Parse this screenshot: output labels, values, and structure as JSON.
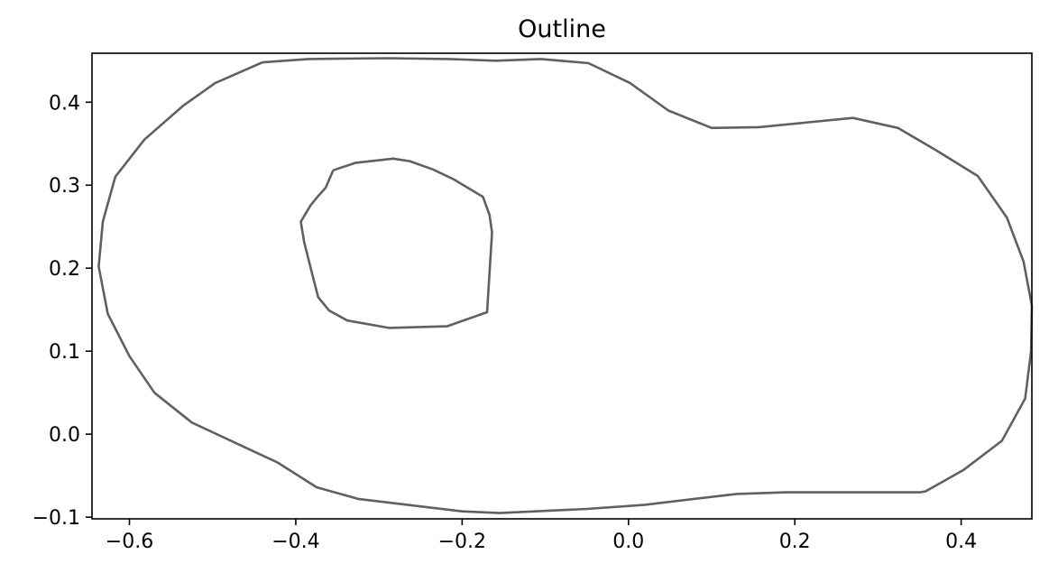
{
  "chart_data": {
    "type": "line",
    "title": "Outline",
    "xlabel": "",
    "ylabel": "",
    "xlim": [
      -0.645,
      0.485
    ],
    "ylim": [
      -0.102,
      0.459
    ],
    "xticks": [
      -0.6,
      -0.4,
      -0.2,
      0.0,
      0.2,
      0.4
    ],
    "xtick_labels": [
      "−0.6",
      "−0.4",
      "−0.2",
      "0.0",
      "0.2",
      "0.4"
    ],
    "yticks": [
      -0.1,
      0.0,
      0.1,
      0.2,
      0.3,
      0.4
    ],
    "ytick_labels": [
      "−0.1",
      "0.0",
      "0.1",
      "0.2",
      "0.3",
      "0.4"
    ],
    "grid": false,
    "line_color": "#606060",
    "series": [
      {
        "x": [
          -0.44,
          -0.385,
          -0.29,
          -0.215,
          -0.16,
          -0.105,
          -0.048,
          0.002,
          0.048,
          0.1,
          0.157,
          0.27,
          0.324,
          0.37,
          0.42,
          0.455,
          0.475,
          0.485,
          0.484,
          0.477,
          0.449,
          0.403,
          0.357,
          0.35,
          0.19,
          0.13,
          0.02,
          -0.05,
          -0.155,
          -0.2,
          -0.325,
          -0.375,
          -0.422,
          -0.525,
          -0.57,
          -0.6,
          -0.626,
          -0.637,
          -0.632,
          -0.617,
          -0.582,
          -0.535,
          -0.497,
          -0.44
        ],
        "y": [
          0.448,
          0.452,
          0.453,
          0.452,
          0.45,
          0.452,
          0.447,
          0.423,
          0.39,
          0.369,
          0.37,
          0.381,
          0.369,
          0.342,
          0.311,
          0.261,
          0.208,
          0.155,
          0.1,
          0.043,
          -0.008,
          -0.043,
          -0.069,
          -0.07,
          -0.07,
          -0.072,
          -0.085,
          -0.09,
          -0.095,
          -0.093,
          -0.078,
          -0.064,
          -0.034,
          0.014,
          0.05,
          0.094,
          0.145,
          0.202,
          0.256,
          0.31,
          0.355,
          0.396,
          0.423,
          0.448
        ]
      },
      {
        "x": [
          -0.355,
          -0.328,
          -0.283,
          -0.263,
          -0.235,
          -0.21,
          -0.175,
          -0.167,
          -0.164,
          -0.17,
          -0.218,
          -0.288,
          -0.338,
          -0.36,
          -0.373,
          -0.379,
          -0.39,
          -0.394,
          -0.382,
          -0.373,
          -0.364,
          -0.355
        ],
        "y": [
          0.318,
          0.327,
          0.332,
          0.329,
          0.319,
          0.307,
          0.286,
          0.264,
          0.243,
          0.147,
          0.13,
          0.128,
          0.137,
          0.149,
          0.165,
          0.188,
          0.232,
          0.256,
          0.276,
          0.287,
          0.297,
          0.318
        ]
      }
    ]
  }
}
